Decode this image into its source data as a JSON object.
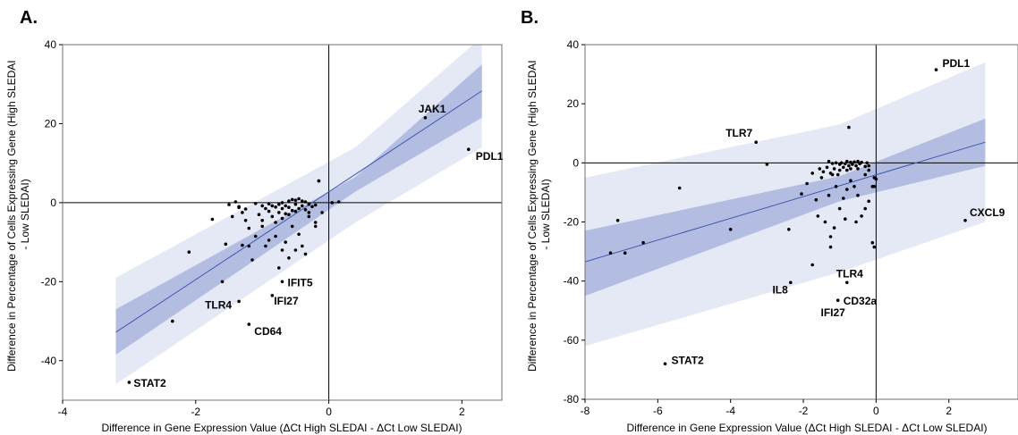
{
  "chart_data": [
    {
      "type": "scatter",
      "panel_label": "A.",
      "xlabel": "Difference in Gene Expression Value (ΔCt High SLEDAI - ΔCt Low SLEDAI)",
      "ylabel": "Difference in Percentage of Cells Expressing Gene (High SLEDAI - Low SLEDAI)",
      "xlim": [
        -4,
        2.6
      ],
      "ylim": [
        -50,
        40
      ],
      "xticks": [
        "-4",
        "-2",
        "0",
        "2"
      ],
      "xtick_values": [
        -4,
        -2,
        0,
        2
      ],
      "yticks": [
        "40",
        "20",
        "0",
        "-20",
        "-40"
      ],
      "ytick_values": [
        40,
        20,
        0,
        -20,
        -40
      ],
      "reference_lines": {
        "x": 0,
        "y": 0
      },
      "fit": {
        "x": [
          -3.2,
          2.3
        ],
        "y": [
          -32.8,
          28.3
        ]
      },
      "confidence_band": {
        "x": [
          -3.2,
          0.4,
          2.3
        ],
        "upper": [
          -27,
          6.5,
          35
        ],
        "lower": [
          -38.5,
          2.8,
          21.5
        ]
      },
      "prediction_band": {
        "x": [
          -3.2,
          0.4,
          2.3
        ],
        "upper": [
          -19,
          14,
          42
        ],
        "lower": [
          -46,
          -5,
          14
        ]
      },
      "points": {
        "x": [
          -3.0,
          -2.35,
          -2.1,
          -1.75,
          -1.6,
          -1.55,
          -1.5,
          -1.35,
          -1.3,
          -1.25,
          -1.2,
          -1.2,
          -1.15,
          -1.1,
          -1.05,
          -1.0,
          -1.0,
          -0.95,
          -0.9,
          -0.9,
          -0.85,
          -0.85,
          -0.8,
          -0.8,
          -0.75,
          -0.75,
          -0.7,
          -0.7,
          -0.7,
          -0.65,
          -0.65,
          -0.6,
          -0.6,
          -0.6,
          -0.55,
          -0.55,
          -0.5,
          -0.5,
          -0.5,
          -0.45,
          -0.45,
          -0.4,
          -0.4,
          -0.35,
          -0.35,
          -0.3,
          -0.3,
          -0.25,
          -0.2,
          -0.2,
          -0.15,
          -0.1,
          -1.45,
          -1.4,
          -1.35,
          -1.3,
          -1.25,
          -1.1,
          -1.0,
          -0.95,
          -0.9,
          -0.8,
          -0.75,
          -0.7,
          -0.65,
          -0.6,
          -0.55,
          -0.5,
          -0.45,
          -0.4,
          -0.35,
          -0.3,
          -0.2,
          0.05,
          0.15,
          -0.15,
          1.45,
          2.1,
          -0.7,
          -0.85,
          -1.35,
          -1.2
        ],
        "y": [
          -45.5,
          -30,
          -12.5,
          -4.2,
          -20,
          -10.5,
          -0.5,
          -1,
          -2.5,
          -4.5,
          -6.5,
          -11,
          -14.5,
          -0.2,
          -3,
          -0.8,
          -4.5,
          -1.5,
          -0.3,
          -2.2,
          -0.8,
          -3.5,
          -1.1,
          -5,
          -0.4,
          -2.5,
          0,
          -1.5,
          -4,
          -0.8,
          -2.8,
          0.4,
          -1.2,
          -3,
          0.8,
          -2,
          0.6,
          -0.4,
          -2.2,
          1,
          -1.5,
          0.4,
          -0.8,
          0.2,
          -1.8,
          -0.4,
          -2.5,
          -1,
          -0.6,
          -5,
          5.5,
          -2.5,
          -3.5,
          0.2,
          -1.2,
          -10.8,
          -1.6,
          -8.5,
          -6,
          -11,
          -9.5,
          -8.5,
          -16.5,
          -12,
          -10,
          -14,
          -6,
          -12,
          -8,
          -11,
          -13,
          -3.5,
          -6,
          0,
          0.2,
          5.5,
          21.5,
          13.5,
          -20,
          -23.5,
          -25,
          -30.8
        ]
      },
      "annotations": [
        {
          "label": "JAK1",
          "x": 1.4,
          "y": 21.5
        },
        {
          "label": "PDL1",
          "x": 2.1,
          "y": 13.5
        },
        {
          "label": "IFIT5",
          "x": -0.7,
          "y": -20
        },
        {
          "label": "IFI27",
          "x": -0.85,
          "y": -23.5
        },
        {
          "label": "TLR4",
          "x": -1.35,
          "y": -25
        },
        {
          "label": "CD64",
          "x": -1.2,
          "y": -30.8
        },
        {
          "label": "STAT2",
          "x": -3.0,
          "y": -45.5
        }
      ]
    },
    {
      "type": "scatter",
      "panel_label": "B.",
      "xlabel": "Difference in Gene Expression Value (ΔCt High SLEDAI - ΔCt Low SLEDAI)",
      "ylabel": "Difference in Percentage of Cells Expressing Gene (High SLEDAI - Low SLEDAI)",
      "xlim": [
        -8,
        3.9
      ],
      "ylim": [
        -80,
        40
      ],
      "xticks": [
        "-8",
        "-6",
        "-4",
        "-2",
        "0",
        "2"
      ],
      "xtick_values": [
        -8,
        -6,
        -4,
        -2,
        0,
        2
      ],
      "yticks": [
        "40",
        "20",
        "0",
        "-20",
        "-40",
        "-60",
        "-80"
      ],
      "ytick_values": [
        40,
        20,
        0,
        -20,
        -40,
        -60,
        -80
      ],
      "reference_lines": {
        "x": 0,
        "y": 0
      },
      "fit": {
        "x": [
          -8,
          3
        ],
        "y": [
          -33.5,
          7
        ]
      },
      "confidence_band": {
        "x": [
          -8,
          -1,
          3
        ],
        "upper": [
          -23,
          -4.5,
          15
        ],
        "lower": [
          -45,
          -13,
          -1
        ]
      },
      "prediction_band": {
        "x": [
          -8,
          -1,
          3
        ],
        "upper": [
          -5,
          13,
          34
        ],
        "lower": [
          -62,
          -37,
          -20
        ]
      },
      "points": {
        "x": [
          -7.3,
          -7.1,
          -6.9,
          -6.4,
          -5.4,
          -4.0,
          -3.0,
          -2.4,
          -2.05,
          -1.9,
          -1.75,
          -1.65,
          -1.55,
          -1.5,
          -1.45,
          -1.35,
          -1.3,
          -1.25,
          -1.2,
          -1.15,
          -1.1,
          -1.05,
          -1.0,
          -1.0,
          -0.95,
          -0.9,
          -0.85,
          -0.8,
          -0.8,
          -0.75,
          -0.7,
          -0.7,
          -0.65,
          -0.6,
          -0.55,
          -0.5,
          -0.5,
          -0.45,
          -0.4,
          -0.3,
          -0.25,
          -0.2,
          -0.1,
          -0.1,
          -0.05,
          0.0,
          -1.3,
          -1.2,
          -1.1,
          -1.0,
          -0.9,
          -0.8,
          -0.7,
          -0.6,
          -0.5,
          -0.4,
          -0.3,
          -0.2,
          -1.4,
          -1.6,
          -0.75,
          -0.05,
          -0.05,
          -0.2,
          -0.3,
          -0.55,
          -0.85,
          -1.15,
          -1.25,
          -1.75,
          -3.3,
          1.65,
          2.45,
          -2.35,
          -1.25,
          -1.05,
          -0.8,
          -5.8
        ],
        "y": [
          -30.5,
          -19.5,
          -30.5,
          -27,
          -8.5,
          -22.5,
          -0.5,
          -22.5,
          -10.5,
          -7,
          -3.5,
          -12.5,
          -2,
          -5,
          -3,
          -1.5,
          0.5,
          -3.5,
          -0.2,
          -2,
          0,
          -4,
          -0.5,
          -2.5,
          0,
          -1.5,
          -0.3,
          0.5,
          -2.5,
          -1,
          0.2,
          -2,
          -0.5,
          0.3,
          -1,
          0.5,
          -2,
          -0.3,
          0.2,
          -1.2,
          0,
          -2.5,
          -8,
          -27,
          -28.5,
          -5.5,
          -11,
          -4,
          -8,
          -15.5,
          -12,
          -9,
          -6,
          -8,
          -11,
          -18,
          -15.5,
          -13,
          -20,
          -18,
          12,
          -8,
          -5,
          -1,
          -4,
          -20,
          -19,
          -22,
          -25,
          -34.5,
          7,
          31.5,
          -19.5,
          -40.5,
          -28.5,
          -46.5,
          -40.5,
          -68
        ],
        "pred_dummy": null
      },
      "annotations": [
        {
          "label": "PDL1",
          "x": 1.65,
          "y": 31.5
        },
        {
          "label": "TLR7",
          "x": -3.3,
          "y": 7
        },
        {
          "label": "CXCL9",
          "x": 2.45,
          "y": -19.5
        },
        {
          "label": "TLR4",
          "x": -0.8,
          "y": -40.5
        },
        {
          "label": "IL8",
          "x": -2.35,
          "y": -40.5
        },
        {
          "label": "CD32a",
          "x": -1.05,
          "y": -46.5
        },
        {
          "label": "IFI27",
          "x": -1.25,
          "y": -46.5
        },
        {
          "label": "STAT2",
          "x": -5.8,
          "y": -68
        }
      ]
    }
  ]
}
